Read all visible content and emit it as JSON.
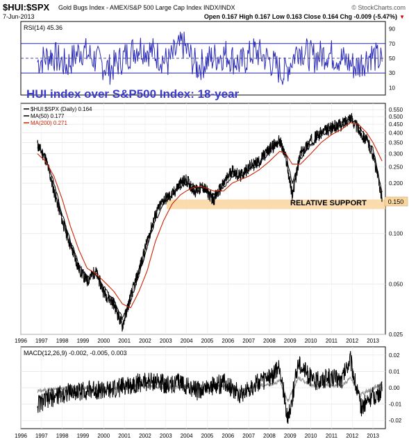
{
  "header": {
    "symbol": "$HUI:$SPX",
    "description": "Gold Bugs Index - AMEX/S&P 500 Large Cap Index  INDX/INDX",
    "credit": "© StockCharts.com",
    "date": "7-Jun-2013",
    "ohlc": "Open 0.167   High 0.167   Low 0.163   Close 0.164   Chg -0.009 (-5.47%)",
    "down_arrow": "▼"
  },
  "rsi_panel": {
    "label": "RSI(14) 45.36",
    "ticks": [
      "90",
      "70",
      "50",
      "30",
      "10"
    ]
  },
  "main_panel": {
    "overlay_title": "HUI index over S&P500 Index: 18-year",
    "legend": [
      {
        "text": "$HUI:$SPX (Daily) 0.164",
        "color": "#000000"
      },
      {
        "text": "MA(50) 0.177",
        "color": "#000000"
      },
      {
        "text": "MA(200) 0.271",
        "color": "#cc2200"
      }
    ],
    "support_label": "RELATIVE SUPPORT",
    "ticks": [
      "0.550",
      "0.500",
      "0.450",
      "0.400",
      "0.350",
      "0.300",
      "0.250",
      "0.200",
      "0.150",
      "0.100",
      "0.050",
      "0.025"
    ],
    "current_tag": "0.150"
  },
  "macd_panel": {
    "label": "MACD(12,26,9) -0.002, -0.005, 0.003",
    "ticks": [
      "0.02",
      "0.01",
      "0.00",
      "-0.01",
      "-0.02"
    ]
  },
  "x_axis_years": [
    "1996",
    "1997",
    "1998",
    "1999",
    "2000",
    "2001",
    "2002",
    "2003",
    "2004",
    "2005",
    "2006",
    "2007",
    "2008",
    "2009",
    "2010",
    "2011",
    "2012",
    "2013"
  ],
  "chart_data": {
    "type": "line",
    "title": "HUI index over S&P500 Index: 18-year",
    "xlabel": "",
    "ylabel": "",
    "y_scale": "log",
    "ylim": [
      0.025,
      0.6
    ],
    "x": [
      1996.8,
      1997.2,
      1997.6,
      1998.0,
      1998.4,
      1998.8,
      1999.2,
      1999.6,
      2000.0,
      2000.5,
      2000.9,
      2001.3,
      2001.7,
      2002.1,
      2002.5,
      2002.9,
      2003.3,
      2003.7,
      2004.0,
      2004.4,
      2004.8,
      2005.3,
      2005.8,
      2006.2,
      2006.6,
      2007.0,
      2007.5,
      2008.0,
      2008.5,
      2008.8,
      2009.1,
      2009.5,
      2010.0,
      2010.5,
      2011.0,
      2011.5,
      2011.9,
      2012.3,
      2012.7,
      2013.0,
      2013.44
    ],
    "series": [
      {
        "name": "$HUI:$SPX (Daily)",
        "values": [
          0.34,
          0.28,
          0.18,
          0.12,
          0.085,
          0.062,
          0.052,
          0.06,
          0.045,
          0.038,
          0.028,
          0.042,
          0.06,
          0.09,
          0.13,
          0.16,
          0.17,
          0.2,
          0.21,
          0.18,
          0.19,
          0.16,
          0.2,
          0.24,
          0.22,
          0.25,
          0.27,
          0.32,
          0.36,
          0.28,
          0.17,
          0.3,
          0.36,
          0.4,
          0.43,
          0.45,
          0.5,
          0.42,
          0.36,
          0.3,
          0.164
        ]
      },
      {
        "name": "MA(50)",
        "values": [
          0.33,
          0.29,
          0.2,
          0.13,
          0.09,
          0.066,
          0.055,
          0.058,
          0.048,
          0.04,
          0.031,
          0.04,
          0.056,
          0.084,
          0.12,
          0.15,
          0.17,
          0.19,
          0.2,
          0.19,
          0.19,
          0.17,
          0.19,
          0.22,
          0.22,
          0.24,
          0.26,
          0.31,
          0.35,
          0.3,
          0.2,
          0.28,
          0.34,
          0.39,
          0.42,
          0.44,
          0.48,
          0.44,
          0.37,
          0.32,
          0.177
        ]
      },
      {
        "name": "MA(200)",
        "values": [
          0.3,
          0.27,
          0.22,
          0.16,
          0.11,
          0.08,
          0.062,
          0.058,
          0.052,
          0.045,
          0.038,
          0.036,
          0.045,
          0.06,
          0.09,
          0.12,
          0.15,
          0.17,
          0.18,
          0.19,
          0.19,
          0.18,
          0.18,
          0.2,
          0.21,
          0.22,
          0.24,
          0.27,
          0.31,
          0.3,
          0.26,
          0.26,
          0.3,
          0.35,
          0.39,
          0.42,
          0.46,
          0.45,
          0.4,
          0.35,
          0.271
        ]
      }
    ],
    "support_band": [
      0.14,
      0.16
    ],
    "rsi": {
      "name": "RSI(14)",
      "ylim": [
        0,
        100
      ],
      "levels": [
        30,
        50,
        70
      ],
      "x": [
        1996.8,
        1997.5,
        1998.2,
        1998.9,
        1999.6,
        2000.3,
        2001.0,
        2001.7,
        2002.4,
        2003.1,
        2003.8,
        2004.5,
        2005.2,
        2005.9,
        2006.6,
        2007.3,
        2008.0,
        2008.7,
        2009.4,
        2010.1,
        2010.8,
        2011.5,
        2012.2,
        2012.9,
        2013.44
      ],
      "values": [
        45,
        55,
        40,
        62,
        48,
        35,
        52,
        66,
        58,
        44,
        70,
        38,
        50,
        56,
        42,
        60,
        47,
        28,
        64,
        51,
        57,
        49,
        38,
        55,
        45.36
      ]
    },
    "macd": {
      "name": "MACD(12,26,9)",
      "ylim": [
        -0.025,
        0.025
      ],
      "x": [
        1996.8,
        1997.5,
        1998.2,
        1998.9,
        1999.6,
        2000.3,
        2001.0,
        2001.7,
        2002.4,
        2003.1,
        2003.8,
        2004.5,
        2005.2,
        2005.9,
        2006.6,
        2007.3,
        2008.0,
        2008.5,
        2008.9,
        2009.4,
        2010.1,
        2010.8,
        2011.5,
        2011.9,
        2012.4,
        2012.9,
        2013.44
      ],
      "macd": [
        -0.01,
        -0.006,
        -0.003,
        -0.002,
        -0.001,
        -0.002,
        0.001,
        0.003,
        0.004,
        0.002,
        0.003,
        -0.002,
        0.001,
        0.003,
        -0.004,
        0.002,
        0.006,
        0.012,
        -0.02,
        0.016,
        0.004,
        0.006,
        0.005,
        0.018,
        -0.012,
        -0.006,
        -0.002
      ],
      "signal": [
        -0.008,
        -0.005,
        -0.003,
        -0.002,
        -0.001,
        -0.001,
        0.0,
        0.002,
        0.003,
        0.002,
        0.002,
        -0.001,
        0.0,
        0.002,
        -0.002,
        0.001,
        0.004,
        0.008,
        -0.012,
        0.01,
        0.003,
        0.004,
        0.004,
        0.012,
        -0.008,
        -0.005,
        -0.005
      ],
      "histogram": [
        -0.002,
        -0.001,
        0.0,
        0.0,
        0.0,
        -0.001,
        0.001,
        0.001,
        0.001,
        0.0,
        0.001,
        -0.001,
        0.001,
        0.001,
        -0.002,
        0.001,
        0.002,
        0.004,
        -0.008,
        0.006,
        0.001,
        0.002,
        0.001,
        0.006,
        -0.004,
        -0.001,
        0.003
      ]
    }
  }
}
